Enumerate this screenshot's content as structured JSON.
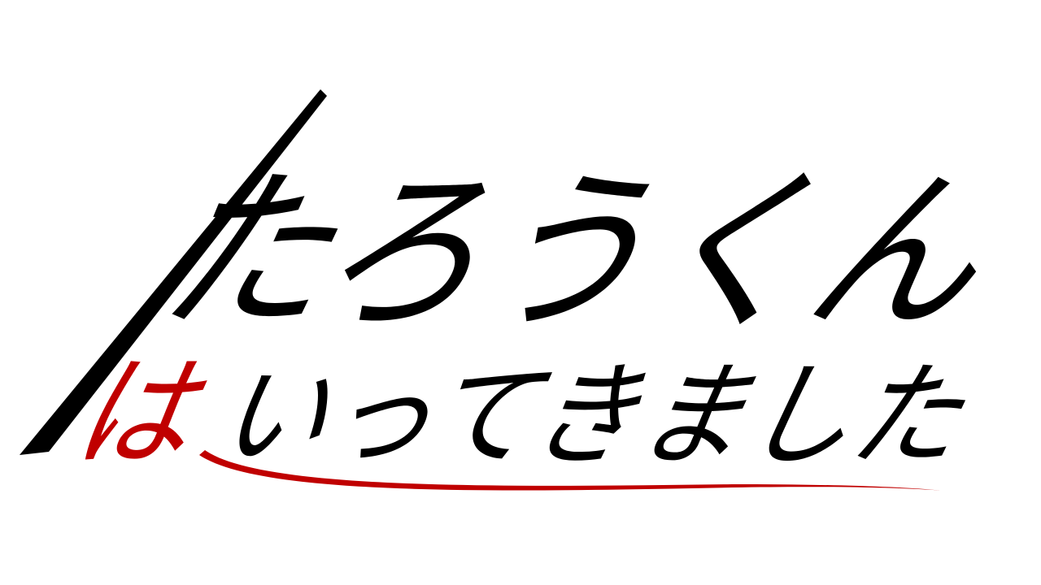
{
  "title": {
    "line1": "たろうくん",
    "line2": {
      "accent": "は",
      "rest": "いってきました"
    }
  }
}
